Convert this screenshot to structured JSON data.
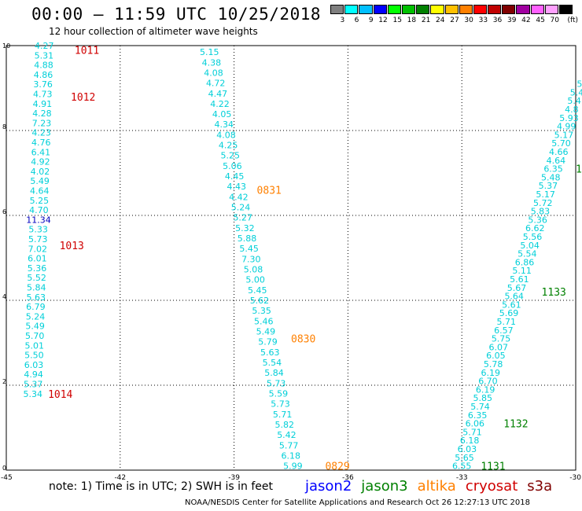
{
  "header": {
    "title": "00:00 – 11:59 UTC 10/25/2018",
    "subtitle": "12 hour collection of altimeter wave heights"
  },
  "legend": {
    "unit": "(ft)",
    "labels": [
      "3",
      "6",
      "9",
      "12",
      "15",
      "18",
      "21",
      "24",
      "27",
      "30",
      "33",
      "36",
      "39",
      "42",
      "45",
      "70"
    ],
    "colors": [
      "#7f7f7f",
      "#00ffff",
      "#00bfff",
      "#0000ff",
      "#00ff00",
      "#00c000",
      "#008000",
      "#ffff00",
      "#ffc000",
      "#ff8000",
      "#ff0000",
      "#c00000",
      "#800000",
      "#a000a0",
      "#ff60ff",
      "#ffa0ff",
      "#000000"
    ]
  },
  "footer": {
    "note": "note:  1) Time is in UTC;  2) SWH is in feet",
    "credit": "NOAA/NESDIS Center for Satellite Applications and Research     Oct 26 12:27:13 UTC 2018",
    "satellites": [
      {
        "name": "jason2",
        "color": "#0000ff"
      },
      {
        "name": "jason3",
        "color": "#008000"
      },
      {
        "name": "altika",
        "color": "#ff8000"
      },
      {
        "name": "cryosat",
        "color": "#d00000"
      },
      {
        "name": "s3a",
        "color": "#800000"
      }
    ]
  },
  "chart_data": {
    "type": "scatter",
    "xlim": [
      -45,
      -30
    ],
    "ylim": [
      0,
      10
    ],
    "x_ticks": [
      "-45",
      "-42",
      "-39",
      "-36",
      "-33",
      "-30"
    ],
    "y_ticks": [
      "0",
      "2",
      "4",
      "6",
      "8",
      "10"
    ],
    "grid": true,
    "tracks": [
      {
        "satellite": "cryosat",
        "color": "#d00000",
        "x_start": -44.0,
        "x_end": -44.3,
        "y_start": 10.0,
        "y_end": 1.8,
        "values": [
          "4.27",
          "5.31",
          "4.88",
          "4.86",
          "3.76",
          "4.73",
          "4.91",
          "4.28",
          "7.23",
          "4.23",
          "4.76",
          "6.41",
          "4.92",
          "4.02",
          "5.49",
          "4.64",
          "5.25",
          "4.70",
          "11.34",
          "5.33",
          "5.73",
          "7.02",
          "6.01",
          "5.36",
          "5.52",
          "5.84",
          "5.63",
          "6.79",
          "5.24",
          "5.49",
          "5.70",
          "5.01",
          "5.50",
          "6.03",
          "4.94",
          "5.37",
          "5.34"
        ],
        "highlight": {
          "value": "11.34",
          "color": "#0000c0"
        },
        "time_labels": [
          {
            "text": "1011",
            "x": -43.2,
            "y": 9.9
          },
          {
            "text": "1012",
            "x": -43.3,
            "y": 8.8
          },
          {
            "text": "1013",
            "x": -43.6,
            "y": 5.3
          },
          {
            "text": "1014",
            "x": -43.9,
            "y": 1.8
          }
        ]
      },
      {
        "satellite": "altika",
        "color": "#ff8000",
        "x_start": -39.65,
        "x_end": -37.45,
        "y_start": 9.85,
        "y_end": 0.1,
        "values": [
          "5.15",
          "4.38",
          "4.08",
          "4.72",
          "4.47",
          "4.22",
          "4.05",
          "4.34",
          "4.08",
          "4.25",
          "5.25",
          "5.06",
          "4.45",
          "4.43",
          "4.42",
          "5.24",
          "5.27",
          "5.32",
          "5.88",
          "5.45",
          "7.30",
          "5.08",
          "5.00",
          "5.45",
          "5.62",
          "5.35",
          "5.46",
          "5.49",
          "5.79",
          "5.63",
          "5.54",
          "5.84",
          "5.73",
          "5.59",
          "5.73",
          "5.71",
          "5.82",
          "5.42",
          "5.77",
          "6.18",
          "5.99"
        ],
        "time_labels": [
          {
            "text": "0831",
            "x": -38.4,
            "y": 6.6
          },
          {
            "text": "0830",
            "x": -37.5,
            "y": 3.1
          },
          {
            "text": "0829",
            "x": -36.6,
            "y": 0.1
          }
        ]
      },
      {
        "satellite": "jason3",
        "color": "#008000",
        "x_start": -33.0,
        "x_end": -29.9,
        "y_start": 0.1,
        "y_end": 9.1,
        "values": [
          "6.55",
          "5.65",
          "6.03",
          "6.18",
          "5.71",
          "6.06",
          "6.35",
          "5.74",
          "5.85",
          "6.19",
          "6.70",
          "6.19",
          "5.78",
          "6.05",
          "6.07",
          "5.75",
          "6.57",
          "5.71",
          "5.69",
          "5.61",
          "5.64",
          "5.67",
          "5.61",
          "5.11",
          "6.86",
          "5.54",
          "5.04",
          "5.56",
          "6.62",
          "5.36",
          "5.83",
          "5.72",
          "5.17",
          "5.37",
          "5.48",
          "6.35",
          "4.64",
          "4.66",
          "5.70",
          "5.17",
          "4.99",
          "5.93",
          "4.8",
          "5.4",
          "5.4",
          "5"
        ],
        "time_labels": [
          {
            "text": "1131",
            "x": -32.5,
            "y": 0.1
          },
          {
            "text": "1132",
            "x": -31.9,
            "y": 1.1
          },
          {
            "text": "1133",
            "x": -30.9,
            "y": 4.2
          },
          {
            "text": "1",
            "x": -30.0,
            "y": 7.1
          }
        ]
      }
    ]
  }
}
